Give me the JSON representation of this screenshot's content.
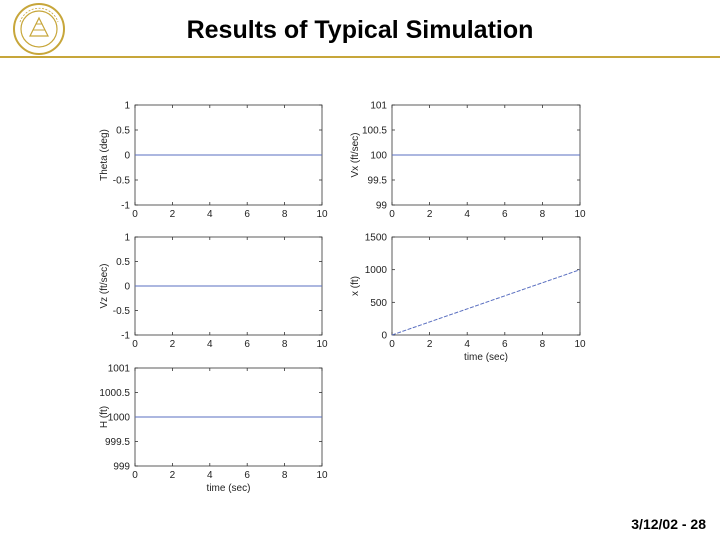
{
  "slide": {
    "title": "Results of Typical Simulation",
    "footer": "3/12/02 - 28",
    "logo_text": "CARNEGIE MELLON"
  },
  "colors": {
    "accent": "#c7a63a",
    "series": "#5a6fc0",
    "axis": "#333333"
  },
  "chart_data": [
    {
      "type": "line",
      "name": "theta",
      "xlabel": "",
      "ylabel": "Theta (deg)",
      "xlim": [
        0,
        10
      ],
      "ylim": [
        -1,
        1
      ],
      "xticks": [
        "0",
        "2",
        "4",
        "6",
        "8",
        "10"
      ],
      "yticks": [
        "-1",
        "-0.5",
        "0",
        "0.5",
        "1"
      ],
      "series": [
        {
          "x": [
            0,
            10
          ],
          "y": [
            0,
            0
          ]
        }
      ]
    },
    {
      "type": "line",
      "name": "vx",
      "xlabel": "",
      "ylabel": "Vx (ft/sec)",
      "xlim": [
        0,
        10
      ],
      "ylim": [
        99,
        101
      ],
      "xticks": [
        "0",
        "2",
        "4",
        "6",
        "8",
        "10"
      ],
      "yticks": [
        "99",
        "99.5",
        "100",
        "100.5",
        "101"
      ],
      "series": [
        {
          "x": [
            0,
            10
          ],
          "y": [
            100,
            100
          ]
        }
      ]
    },
    {
      "type": "line",
      "name": "vz",
      "xlabel": "",
      "ylabel": "Vz (ft/sec)",
      "xlim": [
        0,
        10
      ],
      "ylim": [
        -1,
        1
      ],
      "xticks": [
        "0",
        "2",
        "4",
        "6",
        "8",
        "10"
      ],
      "yticks": [
        "-1",
        "-0.5",
        "0",
        "0.5",
        "1"
      ],
      "series": [
        {
          "x": [
            0,
            10
          ],
          "y": [
            0,
            0
          ]
        }
      ]
    },
    {
      "type": "line",
      "name": "x",
      "xlabel": "time (sec)",
      "ylabel": "x (ft)",
      "xlim": [
        0,
        10
      ],
      "ylim": [
        0,
        1500
      ],
      "xticks": [
        "0",
        "2",
        "4",
        "6",
        "8",
        "10"
      ],
      "yticks": [
        "0",
        "500",
        "1000",
        "1500"
      ],
      "series": [
        {
          "x": [
            0,
            10
          ],
          "y": [
            0,
            1000
          ]
        }
      ]
    },
    {
      "type": "line",
      "name": "h",
      "xlabel": "time (sec)",
      "ylabel": "H (ft)",
      "xlim": [
        0,
        10
      ],
      "ylim": [
        999,
        1001
      ],
      "xticks": [
        "0",
        "2",
        "4",
        "6",
        "8",
        "10"
      ],
      "yticks": [
        "999",
        "999.5",
        "1000",
        "1000.5",
        "1001"
      ],
      "series": [
        {
          "x": [
            0,
            10
          ],
          "y": [
            1000,
            1000
          ]
        }
      ]
    }
  ]
}
